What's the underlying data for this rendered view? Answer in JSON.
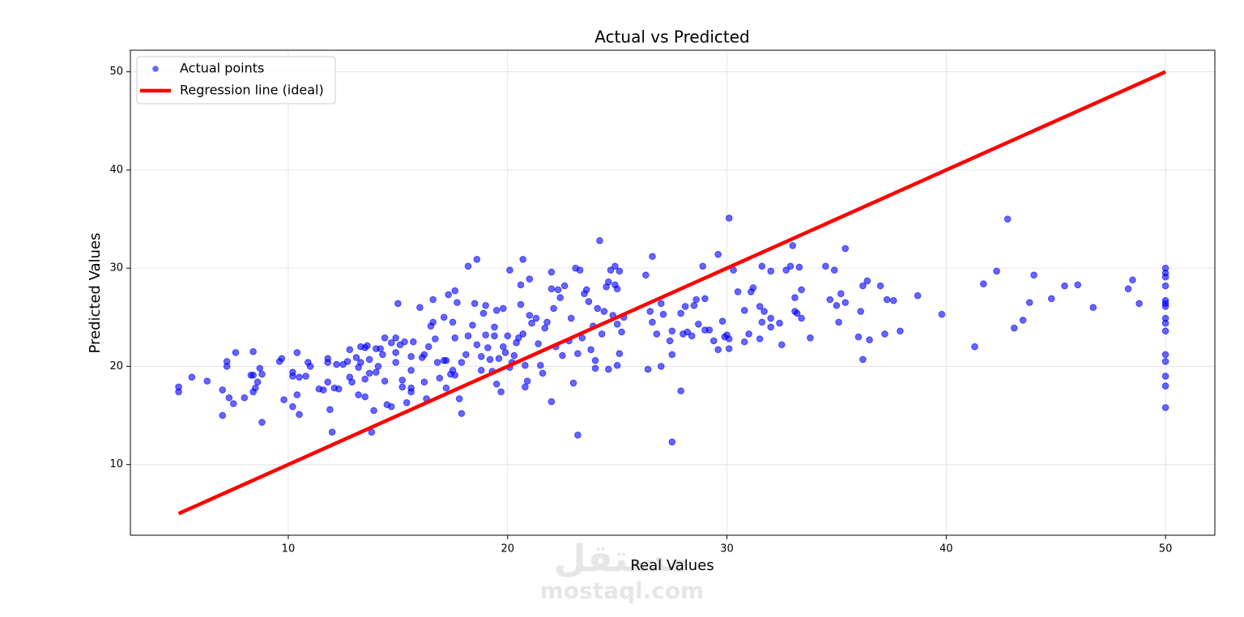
{
  "chart_data": {
    "type": "scatter",
    "title": "Actual vs Predicted",
    "xlabel": "Real Values",
    "ylabel": "Predicted Values",
    "xlim": [
      2.8,
      52.25
    ],
    "ylim": [
      2.8,
      52.2
    ],
    "xticks": [
      10,
      20,
      30,
      40,
      50
    ],
    "yticks": [
      10,
      20,
      30,
      40,
      50
    ],
    "grid": true,
    "legend": "upper left",
    "series": [
      {
        "name": "Actual points",
        "color": "#0000ff",
        "type": "scatter",
        "x": [
          5,
          5,
          5.6,
          6.3,
          7,
          7,
          7.2,
          7.2,
          7.3,
          7.5,
          7.6,
          8,
          8.3,
          8.4,
          8.4,
          8.4,
          8.5,
          8.6,
          8.7,
          8.8,
          8.8,
          9.6,
          9.7,
          9.8,
          10.2,
          10.2,
          10.2,
          10.4,
          10.4,
          10.5,
          10.5,
          10.8,
          10.9,
          11,
          11.4,
          11.6,
          11.8,
          11.8,
          11.8,
          11.9,
          12,
          12.1,
          12.3,
          12.2,
          12.5,
          12.7,
          12.8,
          12.8,
          12.9,
          13.1,
          13.2,
          13.2,
          13.3,
          13.3,
          13.5,
          13.5,
          13.5,
          13.6,
          13.7,
          13.7,
          13.9,
          13.8,
          14,
          14,
          14.1,
          14.2,
          14.3,
          14.4,
          14.4,
          14.5,
          14.7,
          14.7,
          14.9,
          14.9,
          14.9,
          15,
          15.1,
          15.2,
          15.2,
          15.3,
          15.4,
          15.6,
          15.6,
          15.6,
          15.7,
          15.6,
          16,
          16.1,
          16.2,
          16.2,
          16.3,
          16.4,
          16.5,
          16.6,
          16.6,
          16.7,
          16.8,
          16.9,
          17.1,
          17.1,
          17.2,
          17.2,
          17.3,
          17.4,
          17.5,
          17.5,
          17.6,
          17.6,
          17.6,
          17.7,
          17.8,
          17.9,
          17.9,
          18.1,
          18.2,
          18.2,
          18.4,
          18.5,
          18.6,
          18.6,
          18.8,
          18.8,
          18.9,
          19,
          19,
          19.1,
          19.2,
          19.3,
          19.4,
          19.4,
          19.5,
          19.5,
          19.6,
          19.7,
          19.8,
          19.8,
          19.9,
          20,
          20.1,
          20.1,
          20.2,
          20.3,
          20.4,
          20.5,
          20.6,
          20.6,
          20.7,
          20.7,
          20.8,
          20.8,
          20.9,
          21,
          21,
          21.1,
          21.3,
          21.4,
          21.5,
          21.6,
          21.7,
          21.8,
          22,
          22,
          22,
          22.1,
          22.2,
          22.3,
          22.4,
          22.5,
          22.6,
          22.8,
          22.9,
          23,
          23.1,
          23.2,
          23.2,
          23.3,
          23.4,
          23.5,
          23.6,
          23.7,
          23.8,
          23.9,
          24,
          24,
          24.1,
          24.2,
          24.3,
          24.4,
          24.5,
          24.6,
          24.6,
          24.7,
          24.8,
          24.9,
          24.9,
          25,
          25,
          25.1,
          25.2,
          25.1,
          25,
          25.3,
          26.3,
          26.4,
          26.5,
          26.6,
          26.6,
          26.8,
          27,
          27,
          27.1,
          27.4,
          27.5,
          27.5,
          27.5,
          27.9,
          27.9,
          28,
          28.1,
          28.2,
          28.4,
          28.5,
          28.6,
          28.7,
          28.9,
          29,
          29,
          29.2,
          29.4,
          29.6,
          29.6,
          29.8,
          29.9,
          30,
          30.1,
          30.1,
          30.1,
          30.3,
          30.5,
          30.8,
          30.8,
          31,
          31.1,
          31.2,
          31.5,
          31.5,
          31.6,
          31.6,
          31.7,
          32,
          32,
          32,
          32.4,
          32.5,
          32.7,
          32.9,
          33,
          33.1,
          33.1,
          33.2,
          33.3,
          33.4,
          33.4,
          33.8,
          34.5,
          34.7,
          34.9,
          35,
          35.1,
          35.2,
          35.4,
          35.4,
          36,
          36.1,
          36.2,
          36.2,
          36.4,
          36.5,
          37,
          37.2,
          37.3,
          37.6,
          37.9,
          38.7,
          39.8,
          41.3,
          41.7,
          42.3,
          42.8,
          43.1,
          43.5,
          43.8,
          44,
          44.8,
          45.4,
          46,
          46.7,
          48.3,
          48.5,
          48.8,
          50,
          50,
          50,
          50,
          50,
          50,
          50,
          50,
          50,
          50,
          50,
          50,
          50,
          50,
          50
        ],
        "values": [
          17.9,
          17.4,
          18.9,
          18.5,
          17.6,
          15,
          20.5,
          20,
          16.8,
          16.2,
          21.4,
          16.8,
          19.1,
          21.5,
          19.1,
          17.4,
          17.8,
          18.4,
          19.8,
          19.2,
          14.3,
          20.5,
          20.8,
          16.6,
          19.4,
          19,
          15.9,
          21.4,
          17.1,
          18.9,
          15.1,
          19,
          20.4,
          20,
          17.7,
          17.6,
          18.4,
          20.4,
          20.8,
          15.6,
          13.3,
          17.8,
          17.7,
          20.2,
          20.2,
          20.5,
          21.7,
          18.9,
          18.4,
          20.9,
          17.1,
          19.9,
          22,
          20.4,
          21.9,
          18.7,
          16.9,
          22.1,
          20.7,
          19.3,
          15.5,
          13.3,
          21.8,
          19.4,
          20,
          21.8,
          21.2,
          22.9,
          18.5,
          16.1,
          15.9,
          22.4,
          22.9,
          21.4,
          20.4,
          26.4,
          22.2,
          18.6,
          17.9,
          22.5,
          16.3,
          21,
          19.6,
          17.8,
          22.5,
          17.4,
          26,
          20.9,
          21.2,
          18.4,
          16.7,
          22,
          24.1,
          26.8,
          24.5,
          22.8,
          20.4,
          18.8,
          25,
          20.6,
          17.8,
          20.6,
          27.3,
          19.2,
          24.5,
          19.6,
          27.7,
          22.9,
          19.1,
          26.5,
          16.7,
          15.2,
          20.4,
          21.2,
          30.2,
          23.1,
          24.2,
          26.4,
          30.9,
          22.2,
          21,
          19.6,
          25.4,
          26.2,
          23.2,
          21.9,
          20.7,
          19.5,
          23.1,
          24,
          25.7,
          18.2,
          20.8,
          17.4,
          22,
          25.9,
          21.4,
          23.1,
          29.8,
          19.9,
          20.4,
          21.1,
          22.4,
          22.9,
          26.3,
          28.3,
          30.9,
          23.3,
          20.1,
          17.9,
          18.5,
          28.9,
          25.2,
          24.4,
          24.9,
          22.3,
          20.1,
          19.3,
          23.9,
          24.5,
          29.6,
          27.9,
          16.4,
          25.9,
          22,
          27.8,
          27,
          21.1,
          28.2,
          22.6,
          24.9,
          18.3,
          30,
          21.3,
          13,
          29.8,
          22.9,
          27.4,
          27.8,
          26.6,
          21.7,
          24.1,
          20.6,
          19.8,
          25.9,
          32.8,
          23.3,
          25.6,
          28.1,
          28.6,
          19.7,
          29.8,
          25.2,
          30.2,
          28.3,
          27.9,
          24.3,
          29.7,
          23.5,
          21.3,
          20.1,
          25,
          29.3,
          19.7,
          25.6,
          31.2,
          24.5,
          23.3,
          20,
          26.4,
          25.3,
          22.6,
          23.6,
          21.2,
          12.3,
          17.5,
          25.4,
          23.3,
          26.1,
          23.5,
          23.1,
          26.2,
          26.8,
          24.3,
          30.2,
          23.7,
          26.9,
          23.7,
          22.6,
          31.4,
          21.7,
          24.6,
          23,
          23.2,
          35.1,
          21.8,
          22.8,
          29.8,
          27.6,
          22.5,
          25.7,
          23.3,
          27.6,
          28,
          26.1,
          22.8,
          30.2,
          24.5,
          25.6,
          29.7,
          24.9,
          24,
          24.4,
          22.2,
          29.8,
          30.2,
          32.3,
          27,
          25.6,
          25.4,
          30.1,
          27.8,
          24.9,
          22.9,
          30.2,
          26.8,
          29.8,
          26.2,
          24.5,
          27.4,
          32,
          26.5,
          23,
          25.6,
          28.2,
          20.7,
          28.7,
          22.7,
          28.2,
          23.3,
          26.8,
          26.7,
          23.6,
          27.2,
          25.3,
          22,
          28.4,
          29.7,
          35,
          23.9,
          24.7,
          26.5,
          29.3,
          26.9,
          28.2,
          28.3,
          26,
          27.9,
          28.8,
          26.4,
          30,
          29.5,
          29.1,
          28.2,
          26.7,
          26.4,
          26.1,
          24.9,
          24.4,
          23.6,
          21.2,
          20.5,
          19,
          18,
          15.8
        ]
      },
      {
        "name": "Regression line (ideal)",
        "color": "#ff0000",
        "type": "line",
        "x": [
          5,
          50
        ],
        "values": [
          5,
          50
        ]
      }
    ]
  },
  "watermark": {
    "logo": "مستقل",
    "site": "mostaql.com"
  }
}
